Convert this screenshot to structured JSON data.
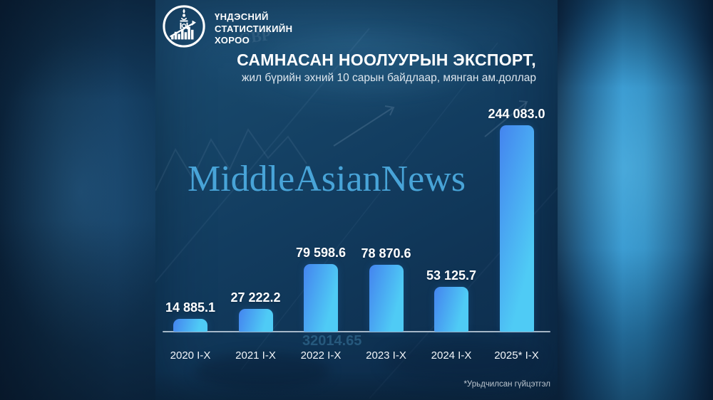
{
  "publisher": {
    "org_name_lines": [
      "ҮНДЭСНИЙ",
      "СТАТИСТИКИЙН",
      "ХОРОО"
    ]
  },
  "header": {
    "title": "САМНАСАН НООЛУУРЫН ЭКСПОРТ,",
    "subtitle": "жил бүрийн эхний 10 сарын байдлаар, мянган ам.доллар"
  },
  "watermark": "MiddleAsianNews",
  "footnote": "*Урьдчилсан гүйцэтгэл",
  "background_texture": {
    "ticker_number": "32014.65",
    "currency_label": "GBP"
  },
  "colors": {
    "bar_gradient_start": "#4484EF",
    "bar_gradient_end": "#4FCBF5",
    "watermark_blue": "#48A4D8",
    "card_navy": "#123C5F",
    "accent_band_blue": "#2F90CA",
    "text_white": "#FFFFFF"
  },
  "chart_data": {
    "type": "bar",
    "title": "САМНАСАН НООЛУУРЫН ЭКСПОРТ,",
    "subtitle": "жил бүрийн эхний 10 сарын байдлаар, мянган ам.доллар",
    "unit": "мянган ам.доллар",
    "categories": [
      "2020 I-X",
      "2021 I-X",
      "2022 I-X",
      "2023 I-X",
      "2024 I-X",
      "2025* I-X"
    ],
    "values": [
      14885.1,
      27222.2,
      79598.6,
      78870.6,
      53125.7,
      244083.0
    ],
    "value_labels": [
      "14 885.1",
      "27 222.2",
      "79 598.6",
      "78 870.6",
      "53 125.7",
      "244 083.0"
    ],
    "ylim": [
      0,
      244083
    ],
    "grid": false,
    "legend": false,
    "footnote": "*Урьдчилсан гүйцэтгэл"
  }
}
